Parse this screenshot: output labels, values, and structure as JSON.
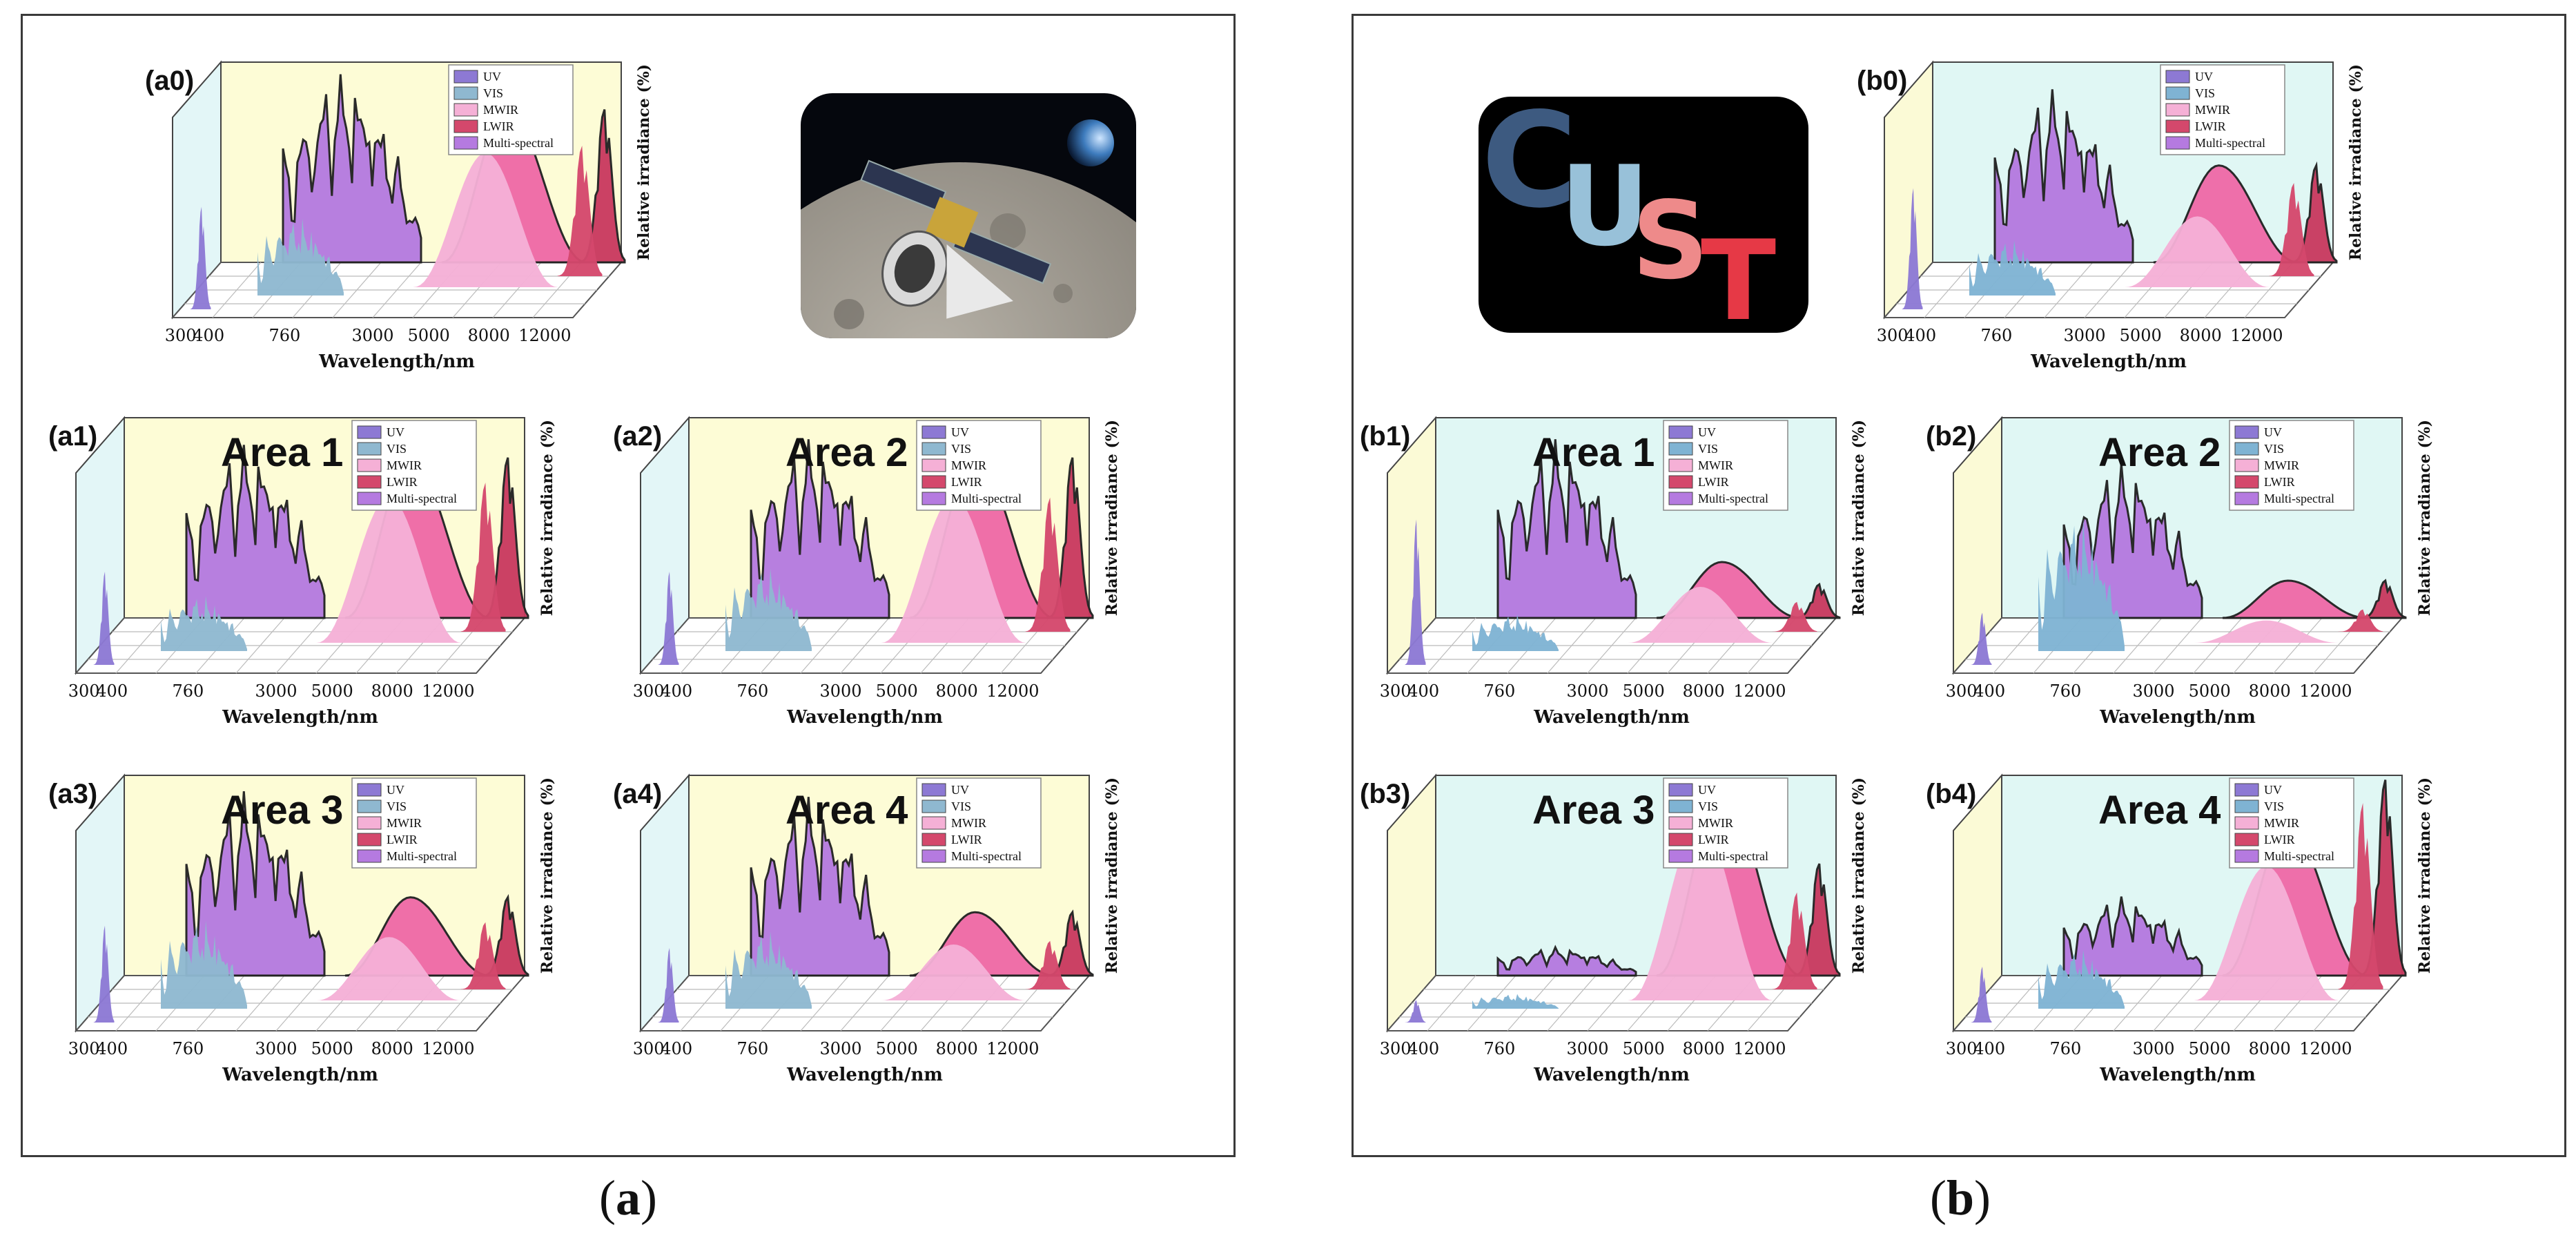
{
  "panels": {
    "a": {
      "caption_open": "(",
      "caption_letter": "a",
      "caption_close": ")",
      "back_wall_color": "#fdfcd6",
      "side_wall_color": "#e3f6f7"
    },
    "b": {
      "caption_open": "(",
      "caption_letter": "b",
      "caption_close": ")",
      "back_wall_color": "#e0f7f4",
      "side_wall_color": "#fbfad6"
    }
  },
  "colors": {
    "UV": "#8d79d4",
    "VIS": "#8fb8d0",
    "VIS_b": "#7fb3d3",
    "MWIR": "#f5b0d6",
    "LWIR": "#d4486c",
    "Multi-spectral": "#b57ae0",
    "Multi-spectral-pink": "#ef6aa7",
    "Multi-spectral-red": "#c93a60"
  },
  "logo": {
    "letters": [
      "C",
      "U",
      "S",
      "T"
    ],
    "letter_colors": [
      "#3d5a80",
      "#98c1d9",
      "#ee8a8a",
      "#e63946"
    ],
    "background": "#000000"
  },
  "common": {
    "legend": [
      "UV",
      "VIS",
      "MWIR",
      "LWIR",
      "Multi-spectral"
    ],
    "xlabel": "Wavelength/nm",
    "ylabel": "Relative irradiance (%)",
    "x_ticks": [
      "300",
      "400",
      "760",
      "3000",
      "5000",
      "8000",
      "12000"
    ]
  },
  "chart_data": [
    {
      "type": "area",
      "id": "a0",
      "label": "(a0)",
      "title": "",
      "peaks": {
        "UV": 0.55,
        "VIS": 0.58,
        "VIS_front": 0.42,
        "MS_VIS": 1.0,
        "MWIR": 0.72,
        "MS_MWIR": 0.82,
        "LWIR": 0.7,
        "MS_LWIR": 0.82
      }
    },
    {
      "type": "area",
      "id": "a1",
      "label": "(a1)",
      "title": "Area 1",
      "peaks": {
        "UV": 0.5,
        "VIS": 0.55,
        "VIS_front": 0.3,
        "MS_VIS": 0.92,
        "MWIR": 0.78,
        "MS_MWIR": 0.85,
        "LWIR": 0.8,
        "MS_LWIR": 0.86
      }
    },
    {
      "type": "area",
      "id": "a2",
      "label": "(a2)",
      "title": "Area 2",
      "peaks": {
        "UV": 0.5,
        "VIS": 0.6,
        "VIS_front": 0.45,
        "MS_VIS": 0.95,
        "MWIR": 0.78,
        "MS_MWIR": 0.86,
        "LWIR": 0.72,
        "MS_LWIR": 0.86
      }
    },
    {
      "type": "area",
      "id": "a3",
      "label": "(a3)",
      "title": "Area 3",
      "peaks": {
        "UV": 0.52,
        "VIS": 0.62,
        "VIS_front": 0.48,
        "MS_VIS": 0.98,
        "MWIR": 0.34,
        "MS_MWIR": 0.42,
        "LWIR": 0.36,
        "MS_LWIR": 0.42
      }
    },
    {
      "type": "area",
      "id": "a4",
      "label": "(a4)",
      "title": "Area 4",
      "peaks": {
        "UV": 0.4,
        "VIS": 0.55,
        "VIS_front": 0.42,
        "MS_VIS": 0.95,
        "MWIR": 0.3,
        "MS_MWIR": 0.34,
        "LWIR": 0.26,
        "MS_LWIR": 0.34
      }
    },
    {
      "type": "area",
      "id": "b0",
      "label": "(b0)",
      "title": "",
      "peaks": {
        "UV": 0.65,
        "VIS": 0.3,
        "VIS_front": 0.3,
        "MS_VIS": 0.92,
        "MWIR": 0.38,
        "MS_MWIR": 0.52,
        "LWIR": 0.5,
        "MS_LWIR": 0.52
      }
    },
    {
      "type": "area",
      "id": "b1",
      "label": "(b1)",
      "title": "Area 1",
      "peaks": {
        "UV": 0.78,
        "VIS": 0.2,
        "VIS_front": 0.2,
        "MS_VIS": 0.95,
        "MWIR": 0.3,
        "MS_MWIR": 0.3,
        "LWIR": 0.16,
        "MS_LWIR": 0.18
      }
    },
    {
      "type": "area",
      "id": "b2",
      "label": "(b2)",
      "title": "Area 2",
      "peaks": {
        "UV": 0.28,
        "VIS": 0.72,
        "VIS_front": 0.72,
        "MS_VIS": 0.82,
        "MWIR": 0.12,
        "MS_MWIR": 0.2,
        "LWIR": 0.12,
        "MS_LWIR": 0.2
      }
    },
    {
      "type": "area",
      "id": "b3",
      "label": "(b3)",
      "title": "Area 3",
      "peaks": {
        "UV": 0.12,
        "VIS": 0.08,
        "VIS_front": 0.08,
        "MS_VIS": 0.15,
        "MWIR": 0.95,
        "MS_MWIR": 1.0,
        "LWIR": 0.52,
        "MS_LWIR": 0.6
      }
    },
    {
      "type": "area",
      "id": "b4",
      "label": "(b4)",
      "title": "Area 4",
      "peaks": {
        "UV": 0.3,
        "VIS": 0.32,
        "VIS_front": 0.32,
        "MS_VIS": 0.42,
        "MWIR": 0.72,
        "MS_MWIR": 0.8,
        "LWIR": 1.0,
        "MS_LWIR": 1.05
      }
    }
  ]
}
